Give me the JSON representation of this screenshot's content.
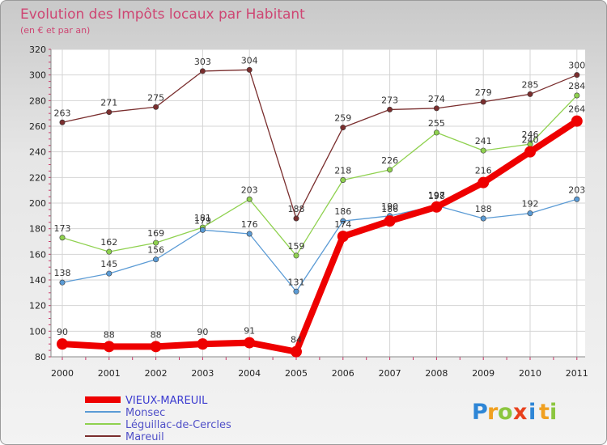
{
  "chart_data": {
    "type": "line",
    "title": "Evolution des Impôts locaux par Habitant",
    "subtitle": "(en € et par an)",
    "xlabel": "",
    "ylabel": "",
    "categories": [
      "2000",
      "2001",
      "2002",
      "2003",
      "2004",
      "2005",
      "2006",
      "2007",
      "2008",
      "2009",
      "2010",
      "2011"
    ],
    "ylim": [
      80,
      320
    ],
    "ytick_labels": [
      "80",
      "100",
      "120",
      "140",
      "160",
      "180",
      "200",
      "220",
      "240",
      "260",
      "280",
      "300",
      "320"
    ],
    "grid": true,
    "legend_position": "bottom-left",
    "series": [
      {
        "name": "VIEUX-MAREUIL",
        "color": "#ee0000",
        "values": [
          90,
          88,
          88,
          90,
          91,
          84,
          174,
          186,
          197,
          216,
          240,
          264
        ],
        "labels": [
          "90",
          "88",
          "88",
          "90",
          "91",
          "84",
          "174",
          "186",
          "197",
          "216",
          "240",
          "264"
        ]
      },
      {
        "name": "Monsec",
        "color": "#5b9bd5",
        "values": [
          138,
          145,
          156,
          179,
          176,
          131,
          186,
          190,
          198,
          188,
          192,
          203
        ],
        "labels": [
          "138",
          "145",
          "156",
          "179",
          "176",
          "131",
          "186",
          "190",
          "198",
          "188",
          "192",
          "203"
        ]
      },
      {
        "name": "Léguillac-de-Cercles",
        "color": "#8fd14f",
        "values": [
          173,
          162,
          169,
          181,
          203,
          159,
          218,
          226,
          255,
          241,
          246,
          284
        ],
        "labels": [
          "173",
          "162",
          "169",
          "181",
          "203",
          "159",
          "218",
          "226",
          "255",
          "241",
          "246",
          "284"
        ]
      },
      {
        "name": "Mareuil",
        "color": "#7a2e2e",
        "values": [
          263,
          271,
          275,
          303,
          304,
          188,
          259,
          273,
          274,
          279,
          285,
          300
        ],
        "labels": [
          "263",
          "271",
          "275",
          "303",
          "304",
          "188",
          "259",
          "273",
          "274",
          "279",
          "285",
          "300"
        ]
      }
    ],
    "label_order": [
      3,
      2,
      1,
      0
    ]
  },
  "logo": {
    "text": "Proxiti",
    "letters": [
      {
        "ch": "P",
        "color": "#2e86d6"
      },
      {
        "ch": "r",
        "color": "#f0a020"
      },
      {
        "ch": "o",
        "color": "#8cc63f"
      },
      {
        "ch": "x",
        "color": "#e8401c"
      },
      {
        "ch": "i",
        "color": "#2e86d6"
      },
      {
        "ch": "t",
        "color": "#f0a020"
      },
      {
        "ch": "i",
        "color": "#8cc63f"
      }
    ]
  }
}
